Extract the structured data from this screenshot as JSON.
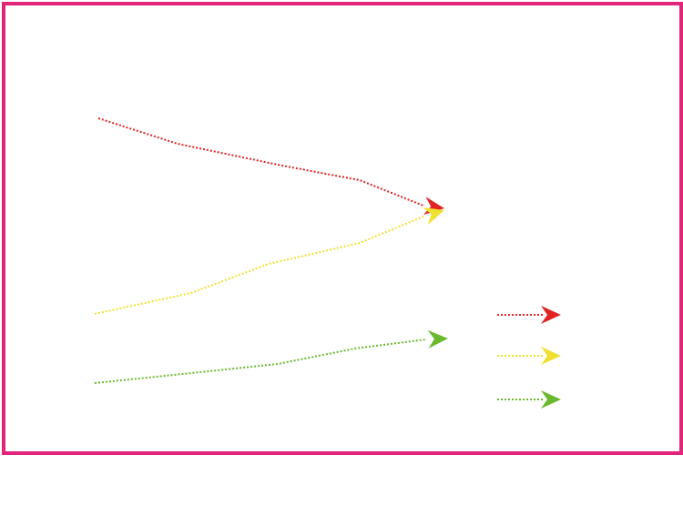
{
  "diagram": {
    "frame_color": "#e0257a",
    "paths": [
      {
        "id": "red",
        "color": "#e02424",
        "style": "dotted",
        "arrowhead": "filled-arrow"
      },
      {
        "id": "yellow",
        "color": "#f0e030",
        "style": "dotted",
        "arrowhead": "filled-arrow"
      },
      {
        "id": "green",
        "color": "#6ab82e",
        "style": "dotted",
        "arrowhead": "filled-arrow"
      }
    ],
    "legend": {
      "entries": [
        {
          "color": "#e02424",
          "style": "dotted",
          "label": ""
        },
        {
          "color": "#f0e030",
          "style": "dotted",
          "label": ""
        },
        {
          "color": "#6ab82e",
          "style": "dotted",
          "label": ""
        }
      ]
    }
  }
}
